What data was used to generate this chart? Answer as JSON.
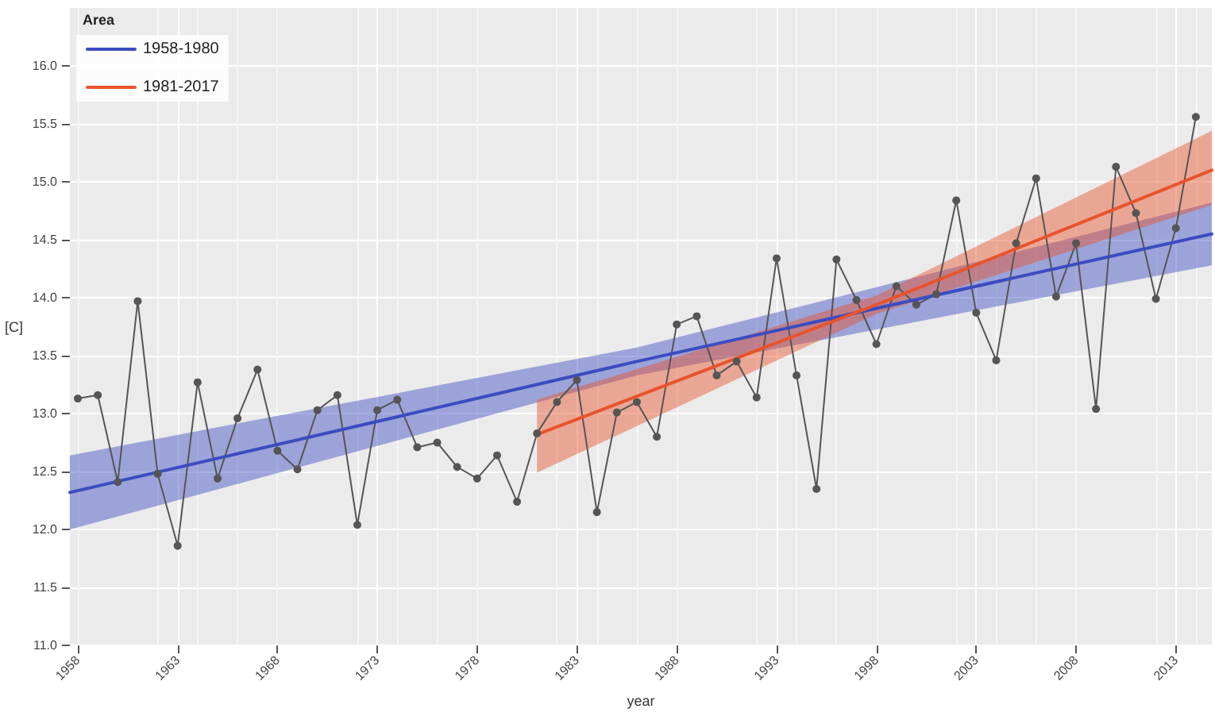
{
  "chart_data": {
    "type": "line",
    "xlabel": "year",
    "ylabel": "[C]",
    "legend_title": "Area",
    "legend": "top left",
    "grid": true,
    "xlim": [
      1957.6,
      2014.8
    ],
    "xticks": [
      1958,
      1963,
      1968,
      1973,
      1978,
      1983,
      1988,
      1993,
      1998,
      2003,
      2008,
      2013
    ],
    "ylim": [
      11,
      16.5
    ],
    "yticks": [
      {
        "value": 11,
        "label": "11.0"
      },
      {
        "value": 11.5,
        "label": "11.5"
      },
      {
        "value": 12,
        "label": "12.0"
      },
      {
        "value": 12.5,
        "label": "12.5"
      },
      {
        "value": 13,
        "label": "13.0"
      },
      {
        "value": 13.5,
        "label": "13.5"
      },
      {
        "value": 14,
        "label": "14.0"
      },
      {
        "value": 14.5,
        "label": "14.5"
      },
      {
        "value": 15,
        "label": "15.0"
      },
      {
        "value": 15.5,
        "label": "15.5"
      },
      {
        "value": 16,
        "label": "16.0"
      }
    ],
    "series": [
      {
        "color": "#555555",
        "marker": "circle",
        "x": [
          1958,
          1959,
          1960,
          1961,
          1962,
          1963,
          1964,
          1965,
          1966,
          1967,
          1968,
          1969,
          1970,
          1971,
          1972,
          1973,
          1974,
          1975,
          1976,
          1977,
          1978,
          1979,
          1980,
          1981,
          1982,
          1983,
          1984,
          1985,
          1986,
          1987,
          1988,
          1989,
          1990,
          1991,
          1992,
          1993,
          1994,
          1995,
          1996,
          1997,
          1998,
          1999,
          2000,
          2001,
          2002,
          2003,
          2004,
          2005,
          2006,
          2007,
          2008,
          2009,
          2010,
          2011,
          2012,
          2013,
          2014
        ],
        "values": [
          13.13,
          13.16,
          12.41,
          13.97,
          12.48,
          11.86,
          13.27,
          12.44,
          12.96,
          13.38,
          12.68,
          12.52,
          13.03,
          13.16,
          12.04,
          13.03,
          13.12,
          12.71,
          12.75,
          12.54,
          12.44,
          12.64,
          12.24,
          12.83,
          13.1,
          13.29,
          12.15,
          13.01,
          13.1,
          12.8,
          13.77,
          13.84,
          13.33,
          13.45,
          13.14,
          14.34,
          13.33,
          12.35,
          14.33,
          13.98,
          13.6,
          14.1,
          13.94,
          14.03,
          14.84,
          13.87,
          13.46,
          14.47,
          15.03,
          14.01,
          14.47,
          13.04,
          15.13,
          14.73,
          13.99,
          14.6,
          15.56
        ]
      },
      {
        "name": "1958-1980",
        "color": "#3b4cc0",
        "marker": "none",
        "x": [
          1957.6,
          1986,
          2014.8
        ],
        "values": [
          12.32,
          13.45,
          14.55
        ],
        "lower": [
          12.0,
          13.33,
          14.28
        ],
        "upper": [
          12.64,
          13.57,
          14.82
        ]
      },
      {
        "name": "1981-2017",
        "color": "#e8532b",
        "marker": "none",
        "x": [
          1981,
          1998,
          2014.8
        ],
        "values": [
          12.82,
          13.94,
          15.1
        ],
        "lower": [
          12.49,
          13.86,
          14.8
        ],
        "upper": [
          13.12,
          14.02,
          15.44
        ]
      }
    ]
  }
}
